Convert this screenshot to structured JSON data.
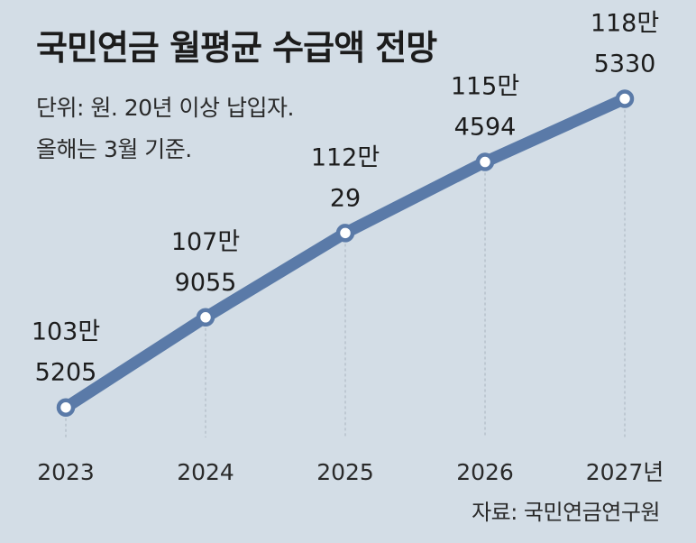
{
  "title": "국민연금 월평균 수급액 전망",
  "subtitle_line1": "단위: 원. 20년 이상 납입자.",
  "subtitle_line2": "올해는 3월 기준.",
  "source": "자료: 국민연금연구원",
  "chart_data": {
    "type": "line",
    "title": "국민연금 월평균 수급액 전망",
    "categories": [
      "2023",
      "2024",
      "2025",
      "2026",
      "2027년"
    ],
    "values": [
      1035205,
      1079055,
      1120029,
      1154594,
      1185330
    ],
    "data_labels": [
      [
        "103만",
        "5205"
      ],
      [
        "107만",
        "9055"
      ],
      [
        "112만",
        "29"
      ],
      [
        "115만",
        "4594"
      ],
      [
        "118만",
        "5330"
      ]
    ],
    "ylim": [
      1000000,
      1200000
    ],
    "xlabel": "",
    "ylabel": "",
    "grid": false,
    "series_color": "#5a7aa8",
    "marker_fill": "#ffffff",
    "guide_color": "#a9b4be"
  }
}
